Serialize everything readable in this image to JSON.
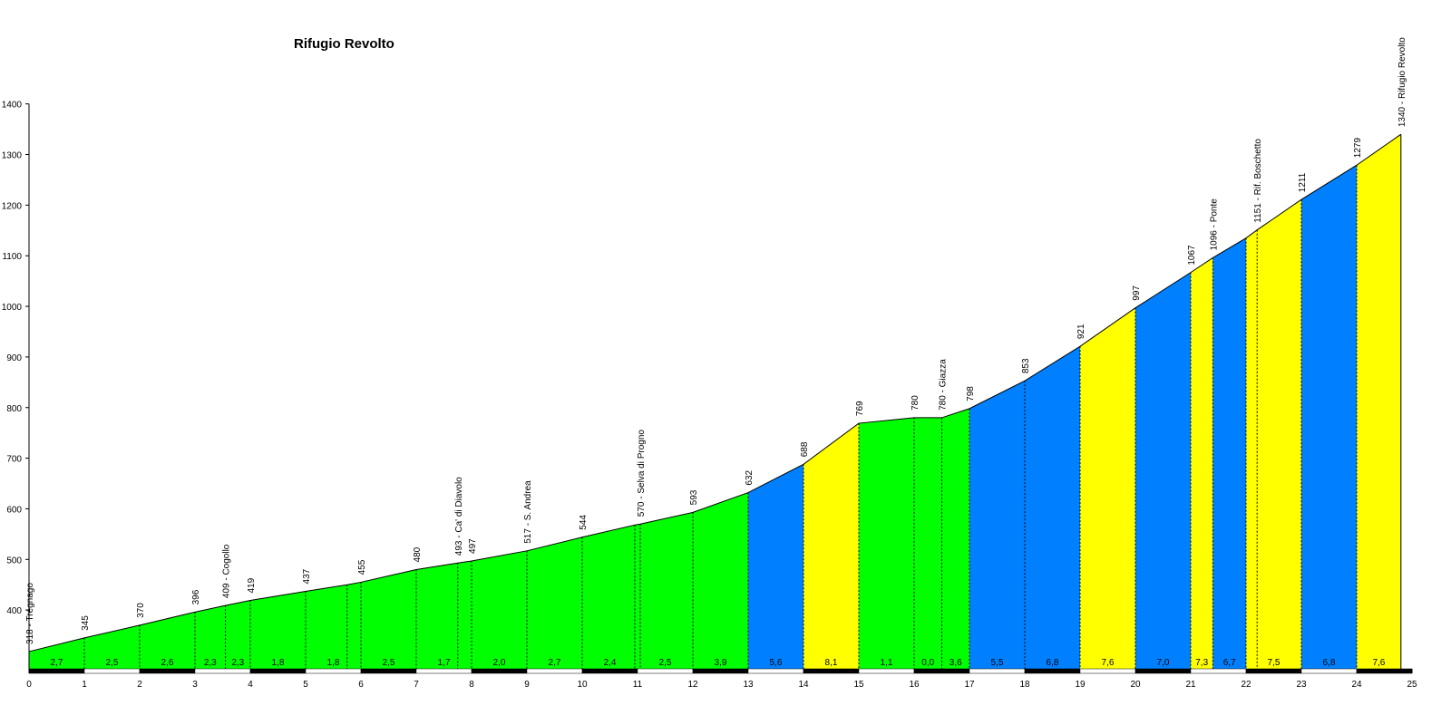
{
  "chart_data": {
    "type": "area",
    "title": "Rifugio Revolto",
    "xlabel": "",
    "ylabel": "",
    "xlim": [
      0,
      25
    ],
    "ylim": [
      300,
      1400
    ],
    "x_ticks": [
      0,
      1,
      2,
      3,
      4,
      5,
      6,
      7,
      8,
      9,
      10,
      11,
      12,
      13,
      14,
      15,
      16,
      17,
      18,
      19,
      20,
      21,
      22,
      23,
      24,
      25
    ],
    "y_ticks": [
      400,
      500,
      600,
      700,
      800,
      900,
      1000,
      1100,
      1200,
      1300,
      1400
    ],
    "colors": {
      "green": "#00ff00",
      "blue": "#0080ff",
      "yellow": "#ffff00"
    },
    "points": [
      {
        "x": 0,
        "y": 318,
        "label": "318 - Tregnago"
      },
      {
        "x": 1,
        "y": 345,
        "label": "345"
      },
      {
        "x": 2,
        "y": 370,
        "label": "370"
      },
      {
        "x": 3,
        "y": 396,
        "label": "396"
      },
      {
        "x": 3.55,
        "y": 409,
        "label": "409 - Cogollo"
      },
      {
        "x": 4,
        "y": 419,
        "label": "419"
      },
      {
        "x": 5,
        "y": 437,
        "label": "437"
      },
      {
        "x": 5.75,
        "y": 450,
        "label": ""
      },
      {
        "x": 6,
        "y": 455,
        "label": "455"
      },
      {
        "x": 7,
        "y": 480,
        "label": "480"
      },
      {
        "x": 7.75,
        "y": 493,
        "label": "493 - Ca' di Diavolo"
      },
      {
        "x": 8,
        "y": 497,
        "label": "497"
      },
      {
        "x": 9,
        "y": 517,
        "label": "517 - S. Andrea"
      },
      {
        "x": 10,
        "y": 544,
        "label": "544"
      },
      {
        "x": 10.95,
        "y": 568,
        "label": ""
      },
      {
        "x": 11.05,
        "y": 570,
        "label": "570 - Selva di Progno"
      },
      {
        "x": 12,
        "y": 593,
        "label": "593"
      },
      {
        "x": 13,
        "y": 632,
        "label": "632"
      },
      {
        "x": 14,
        "y": 688,
        "label": "688"
      },
      {
        "x": 15,
        "y": 769,
        "label": "769"
      },
      {
        "x": 16,
        "y": 780,
        "label": "780"
      },
      {
        "x": 16.5,
        "y": 780,
        "label": "780 - Giazza"
      },
      {
        "x": 17,
        "y": 798,
        "label": "798"
      },
      {
        "x": 18,
        "y": 853,
        "label": "853"
      },
      {
        "x": 19,
        "y": 921,
        "label": "921"
      },
      {
        "x": 20,
        "y": 997,
        "label": "997"
      },
      {
        "x": 21,
        "y": 1067,
        "label": "1067"
      },
      {
        "x": 21.4,
        "y": 1096,
        "label": "1096 - Ponte"
      },
      {
        "x": 22,
        "y": 1135,
        "label": ""
      },
      {
        "x": 22.2,
        "y": 1151,
        "label": "1151 - Rif. Boschetto"
      },
      {
        "x": 23,
        "y": 1211,
        "label": "1211"
      },
      {
        "x": 24,
        "y": 1279,
        "label": "1279"
      },
      {
        "x": 24.8,
        "y": 1340,
        "label": "1340 - Rifugio Revolto"
      }
    ],
    "segments": [
      {
        "from": 0,
        "to": 1,
        "gradient": "2,7",
        "color": "green"
      },
      {
        "from": 1,
        "to": 2,
        "gradient": "2,5",
        "color": "green"
      },
      {
        "from": 2,
        "to": 3,
        "gradient": "2,6",
        "color": "green"
      },
      {
        "from": 3,
        "to": 3.55,
        "gradient": "2,3",
        "color": "green"
      },
      {
        "from": 3.55,
        "to": 4,
        "gradient": "2,3",
        "color": "green"
      },
      {
        "from": 4,
        "to": 5,
        "gradient": "1,8",
        "color": "green"
      },
      {
        "from": 5,
        "to": 6,
        "gradient": "1,8",
        "color": "green"
      },
      {
        "from": 6,
        "to": 7,
        "gradient": "2,5",
        "color": "green"
      },
      {
        "from": 7,
        "to": 8,
        "gradient": "1,7",
        "color": "green"
      },
      {
        "from": 8,
        "to": 9,
        "gradient": "2,0",
        "color": "green"
      },
      {
        "from": 9,
        "to": 10,
        "gradient": "2,7",
        "color": "green"
      },
      {
        "from": 10,
        "to": 11,
        "gradient": "2,4",
        "color": "green"
      },
      {
        "from": 11,
        "to": 12,
        "gradient": "2,5",
        "color": "green"
      },
      {
        "from": 12,
        "to": 13,
        "gradient": "3,9",
        "color": "green"
      },
      {
        "from": 13,
        "to": 14,
        "gradient": "5,6",
        "color": "blue"
      },
      {
        "from": 14,
        "to": 15,
        "gradient": "8,1",
        "color": "yellow"
      },
      {
        "from": 15,
        "to": 16,
        "gradient": "1,1",
        "color": "green"
      },
      {
        "from": 16,
        "to": 16.5,
        "gradient": "0,0",
        "color": "green"
      },
      {
        "from": 16.5,
        "to": 17,
        "gradient": "3,6",
        "color": "green"
      },
      {
        "from": 17,
        "to": 18,
        "gradient": "5,5",
        "color": "blue"
      },
      {
        "from": 18,
        "to": 19,
        "gradient": "6,8",
        "color": "blue"
      },
      {
        "from": 19,
        "to": 20,
        "gradient": "7,6",
        "color": "yellow"
      },
      {
        "from": 20,
        "to": 21,
        "gradient": "7,0",
        "color": "blue"
      },
      {
        "from": 21,
        "to": 21.4,
        "gradient": "7,3",
        "color": "yellow"
      },
      {
        "from": 21.4,
        "to": 22,
        "gradient": "6,7",
        "color": "blue"
      },
      {
        "from": 22,
        "to": 23,
        "gradient": "7,5",
        "color": "yellow"
      },
      {
        "from": 23,
        "to": 24,
        "gradient": "6,8",
        "color": "blue"
      },
      {
        "from": 24,
        "to": 24.8,
        "gradient": "7,6",
        "color": "yellow"
      }
    ]
  }
}
